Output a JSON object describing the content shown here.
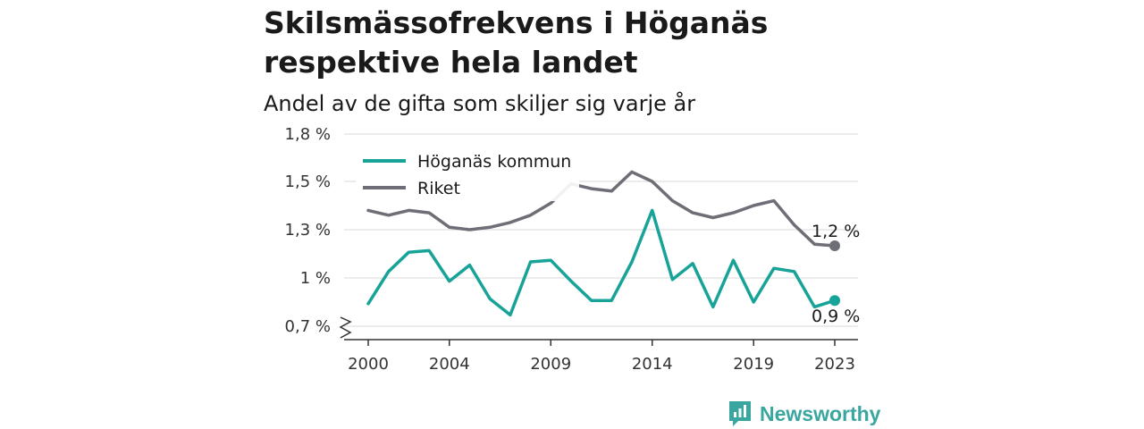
{
  "title": "Skilsmässofrekvens i Höganäs respektive hela landet",
  "subtitle": "Andel av de gifta som skiljer sig varje år",
  "brand": {
    "name": "Newsworthy",
    "icon": "newsworthy-logo-icon",
    "color": "#3aa6a0"
  },
  "chart_data": {
    "type": "line",
    "x": [
      2000,
      2001,
      2002,
      2003,
      2004,
      2005,
      2006,
      2007,
      2008,
      2009,
      2010,
      2011,
      2012,
      2013,
      2014,
      2015,
      2016,
      2017,
      2018,
      2019,
      2020,
      2021,
      2022,
      2023
    ],
    "xticks": [
      2000,
      2004,
      2009,
      2014,
      2019,
      2023
    ],
    "yticks": [
      0.7,
      1.0,
      1.3,
      1.5,
      1.8
    ],
    "ytick_labels": [
      "0,7 %",
      "1 %",
      "1,3 %",
      "1,5 %",
      "1,8 %"
    ],
    "ylim": [
      0.7,
      1.8
    ],
    "y_axis_break": true,
    "grid": true,
    "legend_position": "top-left",
    "series": [
      {
        "name": "Höganäs kommun",
        "color": "#17a398",
        "values": [
          0.84,
          1.04,
          1.16,
          1.17,
          0.98,
          1.08,
          0.87,
          0.77,
          1.1,
          1.11,
          0.98,
          0.86,
          0.86,
          1.1,
          1.38,
          0.99,
          1.09,
          0.82,
          1.11,
          0.85,
          1.06,
          1.04,
          0.82,
          0.86
        ],
        "end_label": "0,9 %"
      },
      {
        "name": "Riket",
        "color": "#6e6e76",
        "values": [
          1.38,
          1.36,
          1.38,
          1.37,
          1.31,
          1.3,
          1.31,
          1.33,
          1.36,
          1.41,
          1.49,
          1.47,
          1.46,
          1.56,
          1.5,
          1.42,
          1.37,
          1.35,
          1.37,
          1.4,
          1.42,
          1.32,
          1.21,
          1.2
        ],
        "end_label": "1,2 %"
      }
    ]
  }
}
